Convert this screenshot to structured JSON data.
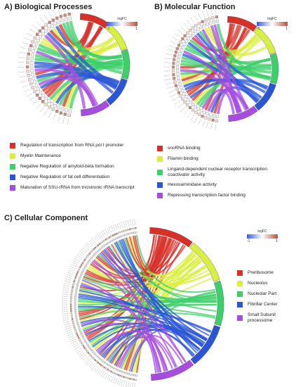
{
  "panels": [
    {
      "title": "A) Biological Processes",
      "colorbar": {
        "title": "logFC",
        "low": "-1",
        "high": "1"
      },
      "legend": [
        {
          "label": "Regulation of transcription from RNA pol I promoter",
          "color": "#d73027"
        },
        {
          "label": "Myelin Maintenance",
          "color": "#d9ef3f"
        },
        {
          "label": "Negative Regulation of amyloid-beta formation",
          "color": "#3ecf6a"
        },
        {
          "label": "Negative Regulation of fat cell differentiation",
          "color": "#2a55d6"
        },
        {
          "label": "Maturation of SSU-rRNA from tricistronic rRNA transcript",
          "color": "#a64de0"
        }
      ]
    },
    {
      "title": "B) Molecular Function",
      "colorbar": {
        "title": "logFC",
        "low": "-1",
        "high": "1"
      },
      "legend": [
        {
          "label": "snoRNA binding",
          "color": "#d73027"
        },
        {
          "label": "Filamin binding",
          "color": "#d9ef3f"
        },
        {
          "label": "Lingand-dependent nuclear receptor transcription coactivator activity",
          "color": "#3ecf6a"
        },
        {
          "label": "Hexosaminidase activity",
          "color": "#2a55d6"
        },
        {
          "label": "Repressing transcription factor binding",
          "color": "#a64de0"
        }
      ]
    },
    {
      "title": "C) Cellular Component",
      "colorbar": {
        "title": "logFC",
        "low": "-1",
        "high": "1"
      },
      "legend": [
        {
          "label": "Preribosome",
          "color": "#d73027"
        },
        {
          "label": "Nucleolus",
          "color": "#d9ef3f"
        },
        {
          "label": "Nucleolar Part",
          "color": "#3ecf6a"
        },
        {
          "label": "Fibrillar Center",
          "color": "#2a55d6"
        },
        {
          "label": "Small Subunit processome",
          "color": "#a64de0"
        }
      ]
    }
  ]
}
